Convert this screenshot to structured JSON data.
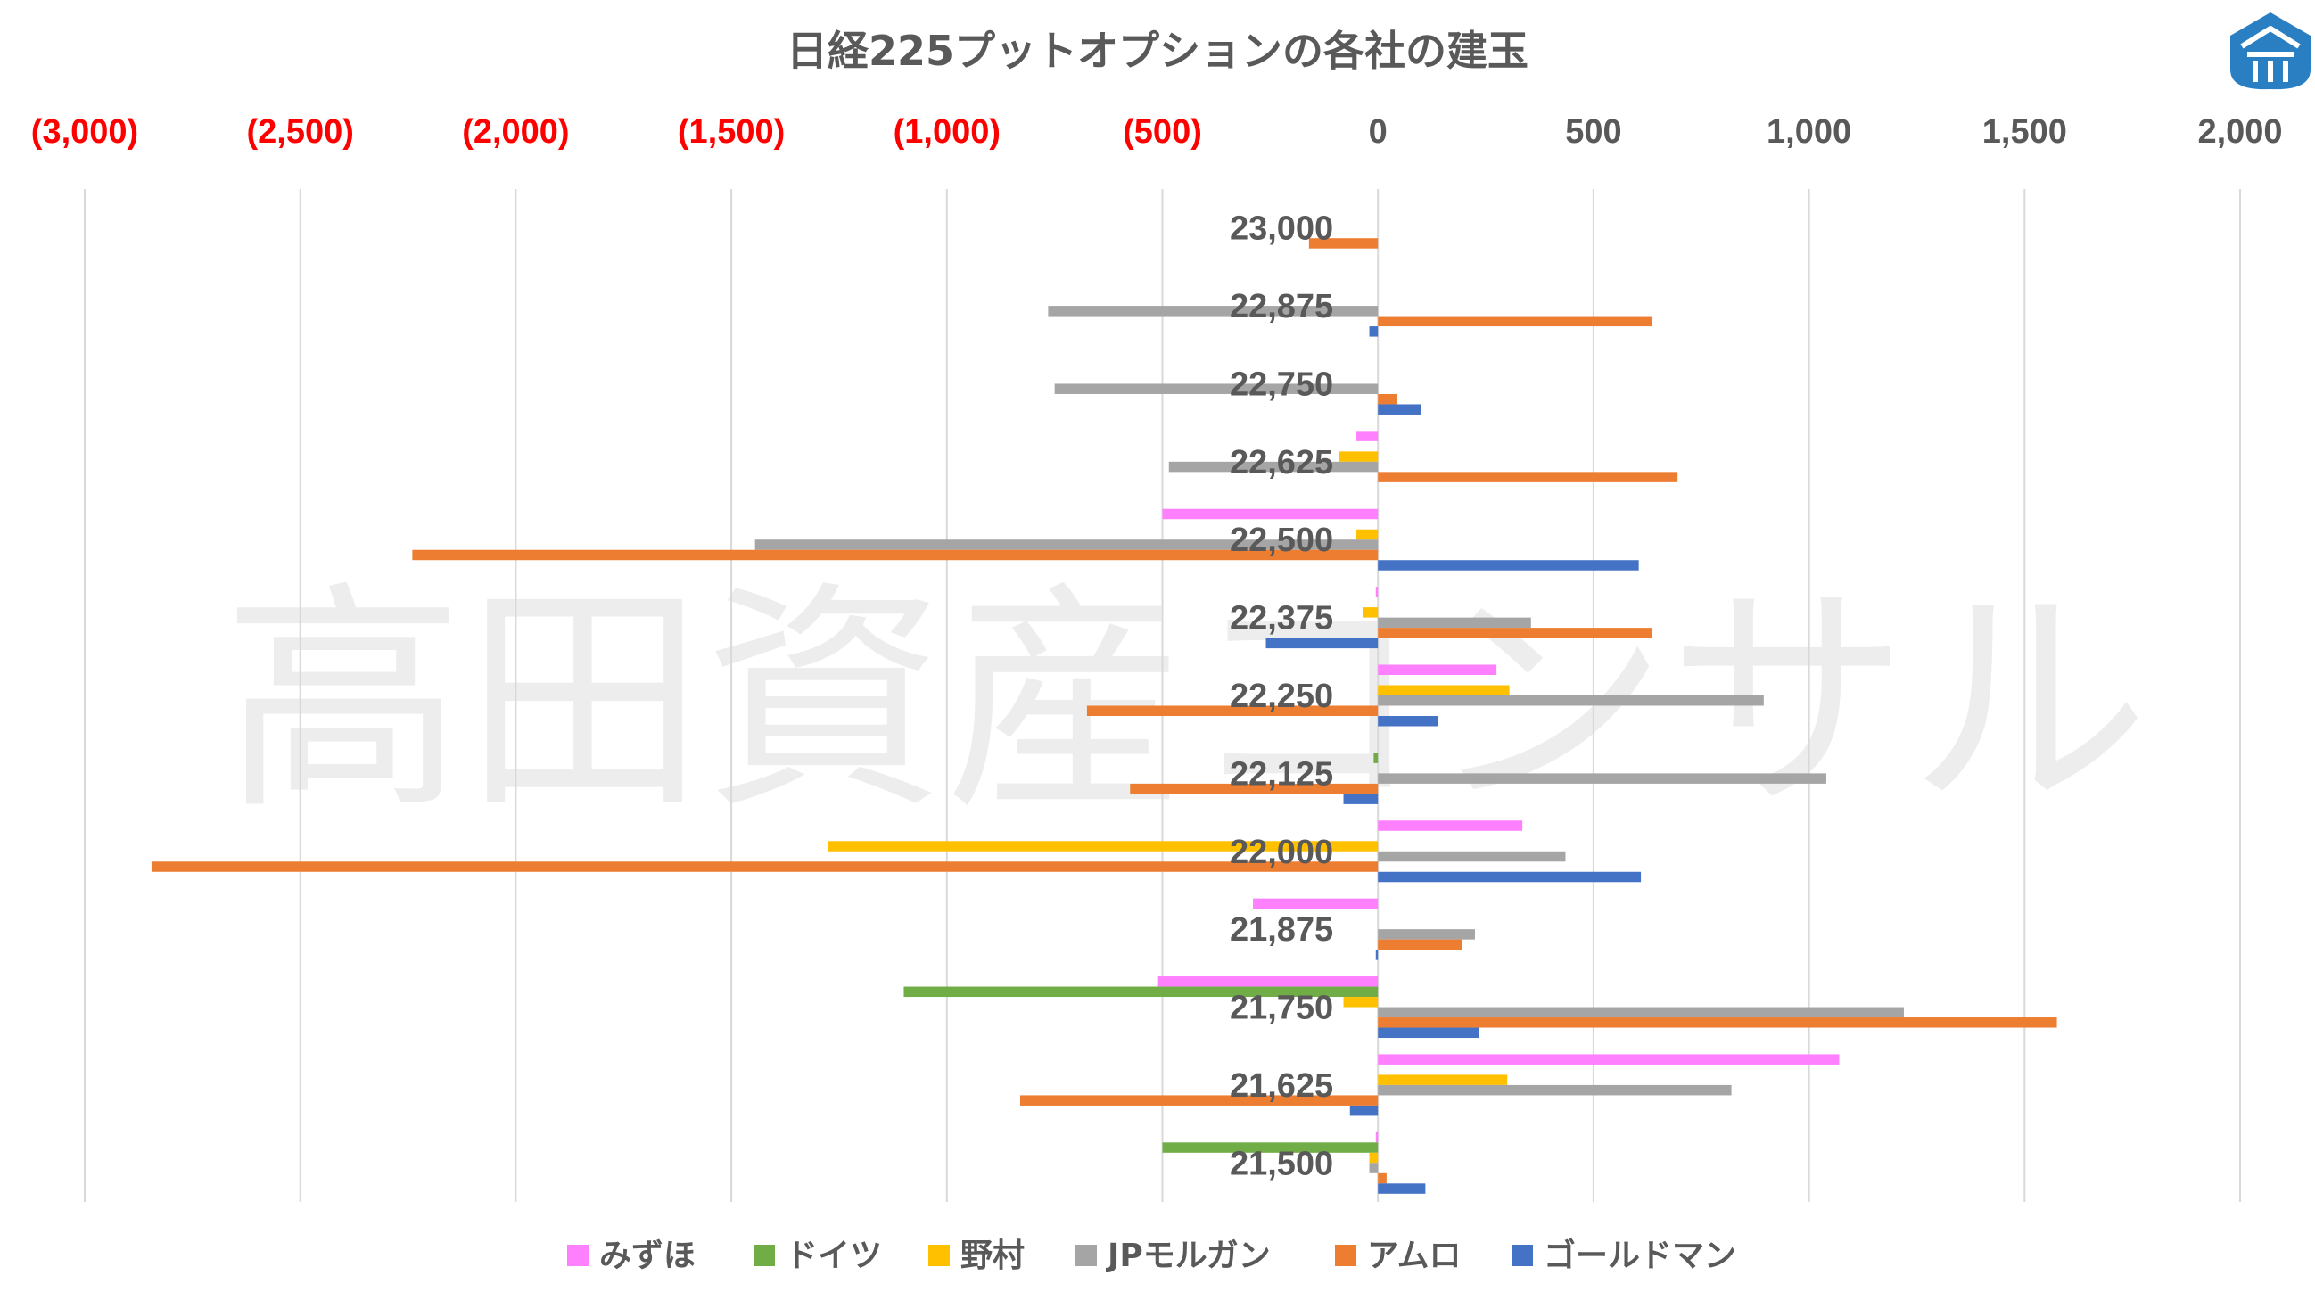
{
  "chart_data": {
    "type": "bar",
    "orientation": "horizontal",
    "title": "日経225プットオプションの各社の建玉",
    "watermark": "高田資産コンサル",
    "xlim": [
      -3000,
      2000
    ],
    "x_ticks": [
      {
        "value": -3000,
        "label": "(3,000)"
      },
      {
        "value": -2500,
        "label": "(2,500)"
      },
      {
        "value": -2000,
        "label": "(2,000)"
      },
      {
        "value": -1500,
        "label": "(1,500)"
      },
      {
        "value": -1000,
        "label": "(1,000)"
      },
      {
        "value": -500,
        "label": "(500)"
      },
      {
        "value": 0,
        "label": "0"
      },
      {
        "value": 500,
        "label": "500"
      },
      {
        "value": 1000,
        "label": "1,000"
      },
      {
        "value": 1500,
        "label": "1,500"
      },
      {
        "value": 2000,
        "label": "2,000"
      }
    ],
    "negative_tick_color": "#ff0000",
    "positive_tick_color": "#595959",
    "grid": true,
    "legend_position": "bottom",
    "categories": [
      "23,000",
      "22,875",
      "22,750",
      "22,625",
      "22,500",
      "22,375",
      "22,250",
      "22,125",
      "22,000",
      "21,875",
      "21,750",
      "21,625",
      "21,500"
    ],
    "series": [
      {
        "name": "みずほ",
        "color": "#ff80ff",
        "values": [
          0,
          0,
          0,
          -50,
          -500,
          -5,
          275,
          0,
          335,
          -290,
          -510,
          1070,
          -5
        ]
      },
      {
        "name": "ドイツ",
        "color": "#70ad47",
        "values": [
          0,
          0,
          0,
          0,
          0,
          0,
          0,
          -10,
          0,
          0,
          -1100,
          0,
          -500
        ]
      },
      {
        "name": "野村",
        "color": "#ffc000",
        "values": [
          0,
          0,
          0,
          -90,
          -50,
          -35,
          305,
          0,
          -1275,
          0,
          -80,
          300,
          -20
        ]
      },
      {
        "name": "JPモルガン",
        "color": "#a5a5a5",
        "values": [
          0,
          -765,
          -750,
          -485,
          -1445,
          355,
          895,
          1040,
          435,
          225,
          1220,
          820,
          -20
        ]
      },
      {
        "name": "アムロ",
        "color": "#ed7d31",
        "values": [
          -160,
          635,
          45,
          695,
          -2240,
          635,
          -675,
          -575,
          -2845,
          195,
          1575,
          -830,
          20
        ]
      },
      {
        "name": "ゴールドマン",
        "color": "#4472c4",
        "values": [
          0,
          -20,
          100,
          0,
          605,
          -260,
          140,
          -80,
          610,
          -5,
          235,
          -65,
          110
        ]
      }
    ]
  }
}
